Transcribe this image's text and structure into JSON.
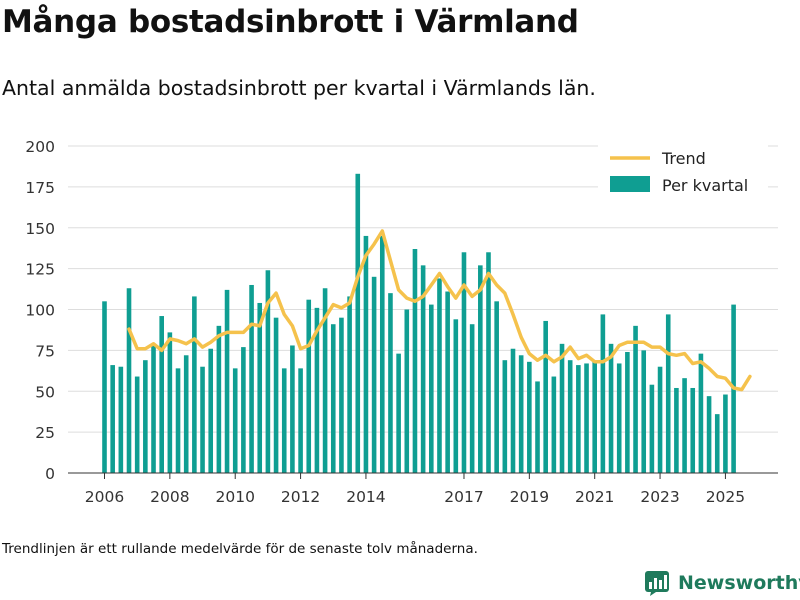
{
  "title": "Många bostadsinbrott i Värmland",
  "subtitle": "Antal anmälda bostadsinbrott per kvartal i Värmlands län.",
  "footnote": "Trendlinjen är ett rullande medelvärde för de senaste tolv månaderna.",
  "brand": "Newsworthy",
  "colors": {
    "bar": "#0f9e92",
    "trend": "#f5c24c",
    "brand": "#1f7a5c"
  },
  "chart_data": {
    "type": "bar",
    "title": "Antal anmälda bostadsinbrott per kvartal i Värmlands län.",
    "xlabel": "",
    "ylabel": "",
    "ylim": [
      0,
      200
    ],
    "y_ticks": [
      0,
      25,
      50,
      75,
      100,
      125,
      150,
      175,
      200
    ],
    "x_ticks": [
      {
        "label": "2006",
        "at": 0
      },
      {
        "label": "2008",
        "at": 8
      },
      {
        "label": "2010",
        "at": 16
      },
      {
        "label": "2012",
        "at": 24
      },
      {
        "label": "2014",
        "at": 32
      },
      {
        "label": "2017",
        "at": 44
      },
      {
        "label": "2019",
        "at": 52
      },
      {
        "label": "2021",
        "at": 60
      },
      {
        "label": "2023",
        "at": 68
      },
      {
        "label": "2025",
        "at": 76
      }
    ],
    "legend": {
      "position": "top-right",
      "entries": [
        "Trend",
        "Per kvartal"
      ]
    },
    "grid": true,
    "series": [
      {
        "name": "Per kvartal",
        "type": "bar",
        "values": [
          105,
          66,
          65,
          113,
          59,
          69,
          79,
          96,
          86,
          64,
          72,
          108,
          65,
          76,
          90,
          112,
          64,
          77,
          115,
          104,
          124,
          95,
          64,
          78,
          64,
          106,
          101,
          113,
          91,
          95,
          108,
          183,
          145,
          120,
          145,
          110,
          73,
          100,
          137,
          127,
          103,
          119,
          111,
          94,
          135,
          91,
          127,
          135,
          105,
          69,
          76,
          72,
          68,
          56,
          93,
          59,
          79,
          69,
          66,
          67,
          68,
          97,
          79,
          67,
          74,
          90,
          75,
          54,
          65,
          97,
          52,
          58,
          52,
          73,
          47,
          36,
          48,
          103
        ]
      },
      {
        "name": "Trend",
        "type": "line",
        "start_index": 3,
        "values": [
          88,
          76,
          76,
          79,
          75,
          82,
          81,
          79,
          82,
          77,
          80,
          84,
          86,
          86,
          86,
          91,
          90,
          104,
          110,
          97,
          90,
          76,
          78,
          87,
          95,
          103,
          101,
          104,
          120,
          133,
          140,
          148,
          130,
          112,
          107,
          105,
          108,
          115,
          122,
          114,
          107,
          115,
          108,
          112,
          122,
          115,
          110,
          97,
          83,
          73,
          69,
          72,
          68,
          71,
          77,
          70,
          72,
          68,
          68,
          71,
          78,
          80,
          80,
          80,
          77,
          77,
          73,
          72,
          73,
          67,
          68,
          64,
          59,
          58,
          52,
          51,
          59
        ]
      }
    ]
  }
}
